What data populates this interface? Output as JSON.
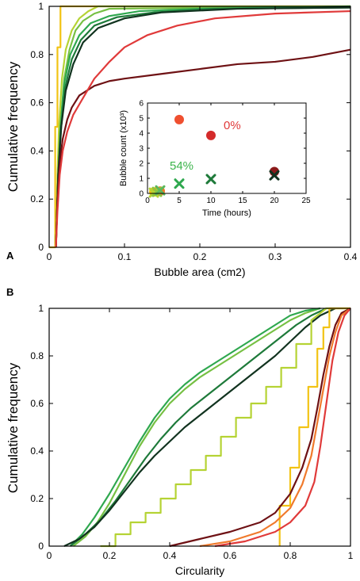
{
  "chart_data": [
    {
      "panel": "A",
      "type": "line",
      "xlabel": "Bubble area (cm2)",
      "ylabel": "Cumulative frequency",
      "xlim": [
        0,
        0.4
      ],
      "ylim": [
        0,
        1
      ],
      "xticks": [
        "0",
        "0.1",
        "0.2",
        "0.3",
        "0.4"
      ],
      "yticks": [
        "0",
        "0.2",
        "0.4",
        "0.6",
        "0.8",
        "1"
      ],
      "series": [
        {
          "color": "#f2c314",
          "step": true,
          "x": [
            0,
            0.008,
            0.008,
            0.011,
            0.011,
            0.015,
            0.015,
            0.4
          ],
          "y": [
            0,
            0,
            0.5,
            0.5,
            0.83,
            0.83,
            1.0,
            1.0
          ]
        },
        {
          "color": "#b5d334",
          "x": [
            0.009,
            0.011,
            0.013,
            0.017,
            0.022,
            0.03,
            0.04,
            0.052,
            0.065,
            0.4
          ],
          "y": [
            0,
            0.3,
            0.5,
            0.7,
            0.82,
            0.9,
            0.95,
            0.98,
            1.0,
            1.0
          ]
        },
        {
          "color": "#76c043",
          "x": [
            0.009,
            0.012,
            0.015,
            0.02,
            0.027,
            0.035,
            0.045,
            0.06,
            0.08,
            0.4
          ],
          "y": [
            0,
            0.3,
            0.5,
            0.7,
            0.82,
            0.9,
            0.94,
            0.97,
            0.99,
            1.0
          ]
        },
        {
          "color": "#2fa84f",
          "x": [
            0.009,
            0.012,
            0.015,
            0.02,
            0.028,
            0.04,
            0.055,
            0.08,
            0.12,
            0.2,
            0.4
          ],
          "y": [
            0,
            0.3,
            0.5,
            0.68,
            0.8,
            0.88,
            0.93,
            0.96,
            0.98,
            0.99,
            1.0
          ]
        },
        {
          "color": "#1e7a3a",
          "x": [
            0.009,
            0.012,
            0.016,
            0.021,
            0.03,
            0.042,
            0.06,
            0.09,
            0.14,
            0.22,
            0.4
          ],
          "y": [
            0,
            0.3,
            0.5,
            0.66,
            0.78,
            0.86,
            0.92,
            0.955,
            0.975,
            0.99,
            0.995
          ]
        },
        {
          "color": "#11331f",
          "x": [
            0.009,
            0.012,
            0.016,
            0.022,
            0.032,
            0.045,
            0.065,
            0.1,
            0.15,
            0.25,
            0.4
          ],
          "y": [
            0,
            0.3,
            0.5,
            0.65,
            0.76,
            0.85,
            0.91,
            0.95,
            0.975,
            0.99,
            0.995
          ]
        },
        {
          "color": "#6e1114",
          "x": [
            0.009,
            0.011,
            0.014,
            0.018,
            0.024,
            0.03,
            0.04,
            0.06,
            0.08,
            0.1,
            0.15,
            0.2,
            0.25,
            0.3,
            0.35,
            0.4
          ],
          "y": [
            0,
            0.2,
            0.35,
            0.45,
            0.53,
            0.58,
            0.63,
            0.67,
            0.69,
            0.7,
            0.72,
            0.74,
            0.76,
            0.77,
            0.79,
            0.82
          ]
        },
        {
          "color": "#e03a3a",
          "x": [
            0.009,
            0.011,
            0.014,
            0.018,
            0.024,
            0.032,
            0.045,
            0.06,
            0.08,
            0.1,
            0.13,
            0.17,
            0.22,
            0.3,
            0.4
          ],
          "y": [
            0,
            0.15,
            0.3,
            0.4,
            0.48,
            0.55,
            0.62,
            0.7,
            0.77,
            0.83,
            0.88,
            0.92,
            0.95,
            0.97,
            0.98
          ]
        }
      ],
      "inset": {
        "xlabel": "Time (hours)",
        "ylabel": "Bubble count (x10³)",
        "xlim": [
          0,
          25
        ],
        "ylim": [
          0,
          6
        ],
        "xticks": [
          "0",
          "5",
          "10",
          "15",
          "20",
          "25"
        ],
        "yticks": [
          "0",
          "1",
          "2",
          "3",
          "4",
          "5",
          "6"
        ],
        "points": [
          {
            "x": 5,
            "y": 4.9,
            "marker": "circle",
            "color": "#ef4f2f"
          },
          {
            "x": 10,
            "y": 3.85,
            "marker": "circle",
            "color": "#d42b2b"
          },
          {
            "x": 20,
            "y": 1.45,
            "marker": "circle",
            "color": "#8b1a1a"
          },
          {
            "x": 1,
            "y": 0.1,
            "marker": "circle",
            "color": "#f2c314"
          },
          {
            "x": 1.5,
            "y": 0.12,
            "marker": "circle",
            "color": "#e6a817"
          },
          {
            "x": 2,
            "y": 0.15,
            "marker": "circle",
            "color": "#ef7a25"
          },
          {
            "x": 1,
            "y": 0.05,
            "marker": "x",
            "color": "#b5d334"
          },
          {
            "x": 1.5,
            "y": 0.1,
            "marker": "x",
            "color": "#8cc63f"
          },
          {
            "x": 2,
            "y": 0.2,
            "marker": "x",
            "color": "#5cb85c"
          },
          {
            "x": 5,
            "y": 0.65,
            "marker": "x",
            "color": "#2fa84f"
          },
          {
            "x": 10,
            "y": 0.95,
            "marker": "x",
            "color": "#1e7a3a"
          },
          {
            "x": 20,
            "y": 1.2,
            "marker": "x",
            "color": "#11331f"
          }
        ],
        "annotations": [
          {
            "text": "0%",
            "color": "#e03a3a"
          },
          {
            "text": "54%",
            "color": "#3cb44b"
          }
        ]
      }
    },
    {
      "panel": "B",
      "type": "line",
      "xlabel": "Circularity",
      "ylabel": "Cumulative frequency",
      "xlim": [
        0,
        1
      ],
      "ylim": [
        0,
        1
      ],
      "xticks": [
        "0",
        "0.2",
        "0.4",
        "0.6",
        "0.8",
        "1"
      ],
      "yticks": [
        "0",
        "0.2",
        "0.4",
        "0.6",
        "0.8",
        "1"
      ],
      "series": [
        {
          "color": "#76c043",
          "x": [
            0.08,
            0.12,
            0.16,
            0.2,
            0.25,
            0.3,
            0.35,
            0.4,
            0.45,
            0.5,
            0.55,
            0.6,
            0.65,
            0.7,
            0.75,
            0.8,
            0.85,
            0.9
          ],
          "y": [
            0,
            0.04,
            0.1,
            0.18,
            0.3,
            0.42,
            0.52,
            0.6,
            0.66,
            0.71,
            0.75,
            0.79,
            0.83,
            0.87,
            0.91,
            0.95,
            0.98,
            1.0
          ]
        },
        {
          "color": "#2fa84f",
          "x": [
            0.07,
            0.11,
            0.15,
            0.2,
            0.25,
            0.3,
            0.35,
            0.4,
            0.45,
            0.5,
            0.55,
            0.6,
            0.65,
            0.7,
            0.75,
            0.8,
            0.85,
            0.9
          ],
          "y": [
            0,
            0.05,
            0.12,
            0.22,
            0.33,
            0.44,
            0.54,
            0.62,
            0.68,
            0.73,
            0.77,
            0.81,
            0.85,
            0.89,
            0.93,
            0.97,
            0.99,
            1.0
          ]
        },
        {
          "color": "#1e7a3a",
          "x": [
            0.07,
            0.12,
            0.17,
            0.22,
            0.27,
            0.32,
            0.37,
            0.42,
            0.47,
            0.52,
            0.57,
            0.62,
            0.67,
            0.72,
            0.77,
            0.82,
            0.87,
            0.92
          ],
          "y": [
            0,
            0.05,
            0.11,
            0.19,
            0.28,
            0.37,
            0.45,
            0.52,
            0.58,
            0.63,
            0.68,
            0.73,
            0.78,
            0.83,
            0.88,
            0.93,
            0.97,
            1.0
          ]
        },
        {
          "color": "#11331f",
          "x": [
            0.05,
            0.1,
            0.15,
            0.2,
            0.25,
            0.3,
            0.35,
            0.4,
            0.45,
            0.5,
            0.55,
            0.6,
            0.65,
            0.7,
            0.75,
            0.8,
            0.85,
            0.9,
            0.95
          ],
          "y": [
            0,
            0.03,
            0.08,
            0.15,
            0.23,
            0.31,
            0.38,
            0.44,
            0.5,
            0.55,
            0.6,
            0.65,
            0.7,
            0.75,
            0.8,
            0.86,
            0.92,
            0.97,
            1.0
          ]
        },
        {
          "color": "#b5d334",
          "step": true,
          "x": [
            0.17,
            0.22,
            0.22,
            0.27,
            0.27,
            0.32,
            0.32,
            0.37,
            0.37,
            0.42,
            0.42,
            0.47,
            0.47,
            0.52,
            0.52,
            0.57,
            0.57,
            0.62,
            0.62,
            0.67,
            0.67,
            0.72,
            0.72,
            0.77,
            0.77,
            0.82,
            0.82,
            0.87,
            0.87,
            0.92,
            1.0
          ],
          "y": [
            0,
            0,
            0.05,
            0.05,
            0.1,
            0.1,
            0.14,
            0.14,
            0.2,
            0.2,
            0.26,
            0.26,
            0.32,
            0.32,
            0.38,
            0.38,
            0.46,
            0.46,
            0.54,
            0.54,
            0.6,
            0.6,
            0.67,
            0.67,
            0.75,
            0.75,
            0.85,
            0.85,
            0.95,
            1.0,
            1.0
          ]
        },
        {
          "color": "#f2c314",
          "step": true,
          "x": [
            0.765,
            0.765,
            0.8,
            0.8,
            0.83,
            0.83,
            0.86,
            0.86,
            0.89,
            0.89,
            0.91,
            0.91,
            0.93,
            0.93,
            1.0
          ],
          "y": [
            0,
            0.17,
            0.17,
            0.33,
            0.33,
            0.5,
            0.5,
            0.67,
            0.67,
            0.83,
            0.83,
            0.92,
            0.92,
            1.0,
            1.0
          ]
        },
        {
          "color": "#6e1114",
          "x": [
            0.4,
            0.5,
            0.6,
            0.7,
            0.75,
            0.8,
            0.84,
            0.87,
            0.89,
            0.91,
            0.93,
            0.95,
            0.97,
            1.0
          ],
          "y": [
            0,
            0.03,
            0.06,
            0.1,
            0.14,
            0.22,
            0.33,
            0.45,
            0.58,
            0.72,
            0.84,
            0.93,
            0.98,
            1.0
          ]
        },
        {
          "color": "#f07a2c",
          "x": [
            0.5,
            0.6,
            0.7,
            0.75,
            0.8,
            0.84,
            0.87,
            0.89,
            0.91,
            0.93,
            0.95,
            0.97,
            1.0
          ],
          "y": [
            0,
            0.02,
            0.06,
            0.1,
            0.16,
            0.26,
            0.38,
            0.52,
            0.66,
            0.8,
            0.9,
            0.97,
            1.0
          ]
        },
        {
          "color": "#e03a3a",
          "x": [
            0.55,
            0.65,
            0.75,
            0.8,
            0.85,
            0.88,
            0.9,
            0.92,
            0.94,
            0.96,
            0.98,
            1.0
          ],
          "y": [
            0,
            0.02,
            0.06,
            0.1,
            0.17,
            0.27,
            0.42,
            0.6,
            0.78,
            0.9,
            0.97,
            1.0
          ]
        }
      ]
    }
  ]
}
